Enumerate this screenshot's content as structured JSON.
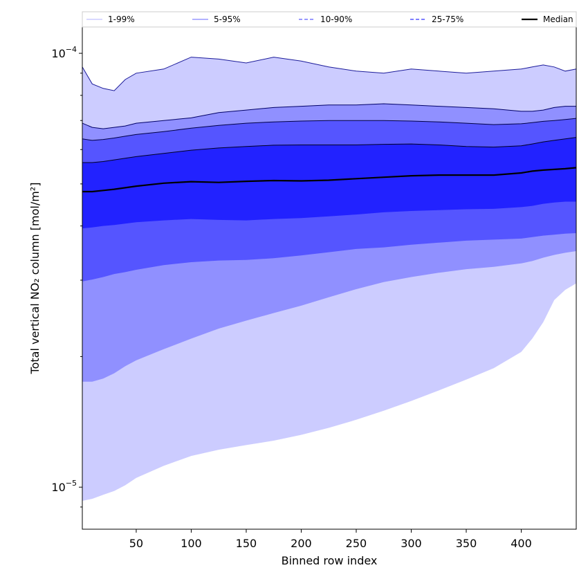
{
  "chart_data": {
    "type": "area",
    "title": "",
    "xlabel": "Binned row index",
    "ylabel": "Total vertical NO₂ column [mol/m²]",
    "yscale": "log",
    "xlim": [
      1,
      450
    ],
    "ylim": [
      8e-06,
      0.000115
    ],
    "xticks": [
      50,
      100,
      150,
      200,
      250,
      300,
      350,
      400
    ],
    "yticks": [
      {
        "value": 1e-05,
        "base": "10",
        "exp": "−5"
      },
      {
        "value": 0.0001,
        "base": "10",
        "exp": "−4"
      }
    ],
    "x": [
      1,
      10,
      20,
      30,
      40,
      50,
      75,
      100,
      125,
      150,
      175,
      200,
      225,
      250,
      275,
      300,
      325,
      350,
      375,
      400,
      410,
      420,
      430,
      440,
      450
    ],
    "bands": [
      {
        "name": "1-99%",
        "color": "#ccccff",
        "line_color": "#1a1a99",
        "low": [
          9.3e-06,
          9.4e-06,
          9.6e-06,
          9.8e-06,
          1.01e-05,
          1.05e-05,
          1.12e-05,
          1.18e-05,
          1.22e-05,
          1.25e-05,
          1.28e-05,
          1.32e-05,
          1.37e-05,
          1.43e-05,
          1.5e-05,
          1.58e-05,
          1.67e-05,
          1.77e-05,
          1.88e-05,
          2.05e-05,
          2.2e-05,
          2.4e-05,
          2.7e-05,
          2.85e-05,
          2.95e-05
        ],
        "high": [
          9.3e-05,
          8.5e-05,
          8.3e-05,
          8.2e-05,
          8.7e-05,
          9e-05,
          9.2e-05,
          9.8e-05,
          9.7e-05,
          9.5e-05,
          9.8e-05,
          9.6e-05,
          9.3e-05,
          9.1e-05,
          9e-05,
          9.2e-05,
          9.1e-05,
          9e-05,
          9.1e-05,
          9.2e-05,
          9.3e-05,
          9.4e-05,
          9.3e-05,
          9.1e-05,
          9.2e-05
        ]
      },
      {
        "name": "5-95%",
        "color": "#9090ff",
        "line_color": "#000066",
        "low": [
          1.75e-05,
          1.75e-05,
          1.78e-05,
          1.83e-05,
          1.9e-05,
          1.96e-05,
          2.08e-05,
          2.2e-05,
          2.32e-05,
          2.42e-05,
          2.52e-05,
          2.62e-05,
          2.74e-05,
          2.86e-05,
          2.97e-05,
          3.05e-05,
          3.12e-05,
          3.18e-05,
          3.22e-05,
          3.28e-05,
          3.32e-05,
          3.38e-05,
          3.43e-05,
          3.47e-05,
          3.5e-05
        ],
        "high": [
          6.9e-05,
          6.75e-05,
          6.7e-05,
          6.75e-05,
          6.8e-05,
          6.9e-05,
          7e-05,
          7.1e-05,
          7.3e-05,
          7.4e-05,
          7.5e-05,
          7.55e-05,
          7.6e-05,
          7.6e-05,
          7.65e-05,
          7.6e-05,
          7.55e-05,
          7.5e-05,
          7.45e-05,
          7.35e-05,
          7.35e-05,
          7.4e-05,
          7.5e-05,
          7.55e-05,
          7.55e-05
        ]
      },
      {
        "name": "10-90%",
        "color": "#5555ff",
        "line_color": "#000044",
        "low": [
          2.98e-05,
          3.01e-05,
          3.05e-05,
          3.1e-05,
          3.13e-05,
          3.17e-05,
          3.25e-05,
          3.3e-05,
          3.33e-05,
          3.34e-05,
          3.37e-05,
          3.42e-05,
          3.48e-05,
          3.54e-05,
          3.57e-05,
          3.62e-05,
          3.66e-05,
          3.7e-05,
          3.72e-05,
          3.74e-05,
          3.77e-05,
          3.8e-05,
          3.82e-05,
          3.84e-05,
          3.85e-05
        ],
        "high": [
          6.35e-05,
          6.3e-05,
          6.33e-05,
          6.38e-05,
          6.44e-05,
          6.5e-05,
          6.6e-05,
          6.72e-05,
          6.82e-05,
          6.9e-05,
          6.95e-05,
          6.98e-05,
          7e-05,
          7e-05,
          7e-05,
          6.98e-05,
          6.95e-05,
          6.9e-05,
          6.85e-05,
          6.88e-05,
          6.92e-05,
          6.97e-05,
          7e-05,
          7.04e-05,
          7.08e-05
        ]
      },
      {
        "name": "25-75%",
        "color": "#2222ff",
        "line_color": "#000022",
        "low": [
          3.95e-05,
          3.97e-05,
          4e-05,
          4.02e-05,
          4.05e-05,
          4.08e-05,
          4.12e-05,
          4.15e-05,
          4.13e-05,
          4.12e-05,
          4.15e-05,
          4.17e-05,
          4.21e-05,
          4.25e-05,
          4.3e-05,
          4.33e-05,
          4.35e-05,
          4.37e-05,
          4.38e-05,
          4.42e-05,
          4.45e-05,
          4.5e-05,
          4.53e-05,
          4.55e-05,
          4.55e-05
        ],
        "high": [
          5.6e-05,
          5.6e-05,
          5.63e-05,
          5.68e-05,
          5.73e-05,
          5.78e-05,
          5.88e-05,
          5.98e-05,
          6.05e-05,
          6.1e-05,
          6.14e-05,
          6.15e-05,
          6.15e-05,
          6.15e-05,
          6.17e-05,
          6.18e-05,
          6.15e-05,
          6.1e-05,
          6.08e-05,
          6.12e-05,
          6.18e-05,
          6.25e-05,
          6.3e-05,
          6.35e-05,
          6.4e-05
        ]
      }
    ],
    "median": {
      "name": "Median",
      "color": "#000000",
      "values": [
        4.8e-05,
        4.8e-05,
        4.83e-05,
        4.86e-05,
        4.9e-05,
        4.94e-05,
        5.02e-05,
        5.06e-05,
        5.04e-05,
        5.07e-05,
        5.09e-05,
        5.08e-05,
        5.1e-05,
        5.14e-05,
        5.18e-05,
        5.22e-05,
        5.24e-05,
        5.24e-05,
        5.24e-05,
        5.3e-05,
        5.35e-05,
        5.38e-05,
        5.4e-05,
        5.42e-05,
        5.45e-05
      ]
    },
    "legend": {
      "placement": "top",
      "entries": [
        {
          "label": "1-99%",
          "color": "#ccccff",
          "style": "solid"
        },
        {
          "label": "5-95%",
          "color": "#9999ff",
          "style": "solid"
        },
        {
          "label": "10-90%",
          "color": "#7777ff",
          "style": "dashed"
        },
        {
          "label": "25-75%",
          "color": "#5555ff",
          "style": "dashed"
        },
        {
          "label": "Median",
          "color": "#000000",
          "style": "solid"
        }
      ]
    }
  }
}
